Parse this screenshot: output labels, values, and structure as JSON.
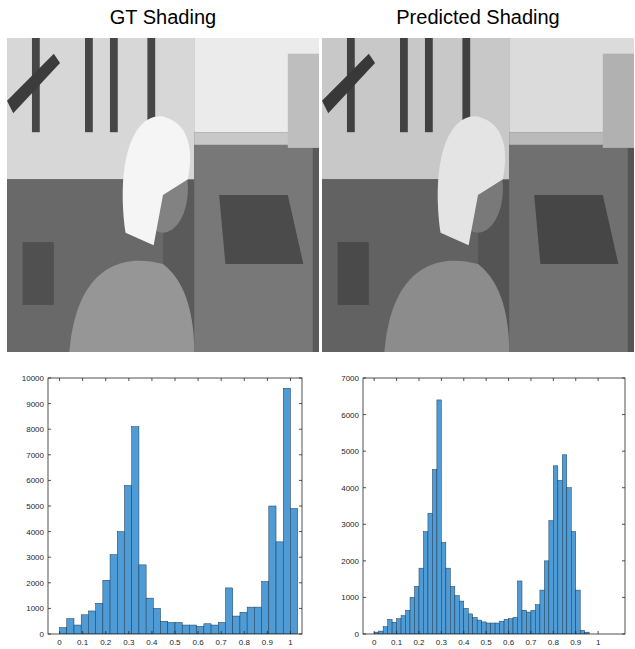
{
  "panels": [
    {
      "title": "GT Shading"
    },
    {
      "title": "Predicted Shading"
    }
  ],
  "chart_data": [
    {
      "type": "histogram",
      "color": "#4f9bd5",
      "bins": [
        0,
        0.03125,
        0.0625,
        0.09375,
        0.125,
        0.15625,
        0.1875,
        0.21875,
        0.25,
        0.28125,
        0.3125,
        0.34375,
        0.375,
        0.40625,
        0.4375,
        0.46875,
        0.5,
        0.53125,
        0.5625,
        0.59375,
        0.625,
        0.65625,
        0.6875,
        0.71875,
        0.75,
        0.78125,
        0.8125,
        0.84375,
        0.875,
        0.90625,
        0.9375,
        0.96875,
        1,
        1.03125
      ],
      "values": [
        250,
        600,
        350,
        750,
        900,
        1200,
        2100,
        3100,
        4000,
        5800,
        8100,
        2700,
        1400,
        1000,
        500,
        450,
        450,
        350,
        350,
        300,
        400,
        350,
        450,
        1800,
        700,
        850,
        1050,
        1050,
        2050,
        5000,
        3600,
        9600,
        4900
      ],
      "xlim": [
        -0.05,
        1.05
      ],
      "xticks": [
        0,
        0.1,
        0.2,
        0.3,
        0.4,
        0.5,
        0.6,
        0.7,
        0.8,
        0.9,
        1
      ],
      "ylim": [
        0,
        10000
      ],
      "yticks": [
        0,
        1000,
        2000,
        3000,
        4000,
        5000,
        6000,
        7000,
        8000,
        9000,
        10000
      ],
      "grid": false
    },
    {
      "type": "histogram",
      "color": "#4f9bd5",
      "bins": [
        0,
        0.02,
        0.04,
        0.06,
        0.08,
        0.1,
        0.12,
        0.14,
        0.16,
        0.18,
        0.2,
        0.22,
        0.24,
        0.26,
        0.28,
        0.3,
        0.32,
        0.34,
        0.36,
        0.38,
        0.4,
        0.42,
        0.44,
        0.46,
        0.48,
        0.5,
        0.52,
        0.54,
        0.56,
        0.58,
        0.6,
        0.62,
        0.64,
        0.66,
        0.68,
        0.7,
        0.72,
        0.74,
        0.76,
        0.78,
        0.8,
        0.82,
        0.84,
        0.86,
        0.88,
        0.9,
        0.92,
        0.94,
        0.96
      ],
      "values": [
        50,
        80,
        200,
        400,
        320,
        420,
        500,
        650,
        1000,
        1300,
        1800,
        2800,
        3300,
        4500,
        6400,
        2500,
        1800,
        1300,
        1050,
        900,
        700,
        550,
        450,
        380,
        330,
        300,
        300,
        300,
        350,
        400,
        420,
        450,
        1450,
        650,
        600,
        650,
        800,
        1200,
        2000,
        3100,
        4600,
        4200,
        4900,
        4000,
        2800,
        1200,
        100,
        50
      ],
      "xlim": [
        -0.05,
        1.12
      ],
      "xticks": [
        0,
        0.1,
        0.2,
        0.3,
        0.4,
        0.5,
        0.6,
        0.7,
        0.8,
        0.9,
        1
      ],
      "ylim": [
        0,
        7000
      ],
      "yticks": [
        0,
        1000,
        2000,
        3000,
        4000,
        5000,
        6000,
        7000
      ],
      "grid": false
    }
  ]
}
